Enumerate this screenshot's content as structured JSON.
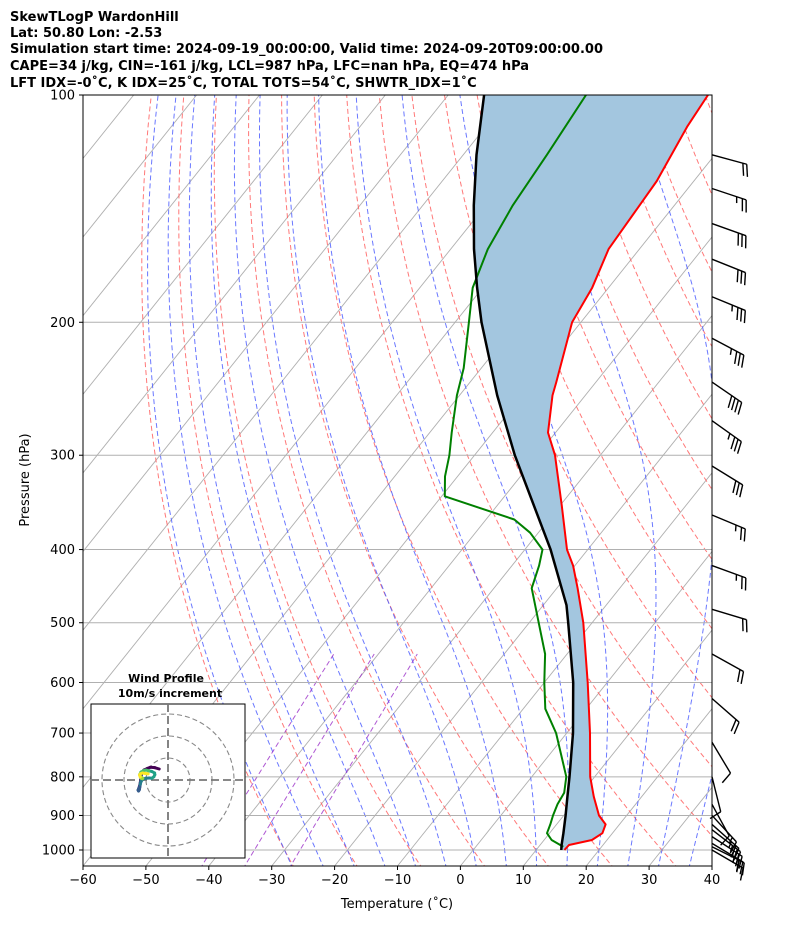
{
  "header": {
    "line1": "SkewTLogP WardonHill",
    "line2": "Lat: 50.80   Lon: -2.53",
    "line3": "Simulation start time: 2024-09-19_00:00:00, Valid time: 2024-09-20T09:00:00.00",
    "line4": "CAPE=34 j/kg, CIN=-161 j/kg, LCL=987 hPa, LFC=nan hPa, EQ=474 hPa",
    "line5": "LFT IDX=-0˚C, K IDX=25˚C, TOTAL TOTS=54˚C, SHWTR_IDX=1˚C"
  },
  "chart_data": [
    {
      "type": "line",
      "subtype": "skew-t log-p",
      "xlabel": "Temperature (˚C)",
      "ylabel": "Pressure (hPa)",
      "xlim": [
        -60,
        40
      ],
      "ylim": [
        1050,
        100
      ],
      "y_scale": "log",
      "x_ticks": [
        -60,
        -50,
        -40,
        -30,
        -20,
        -10,
        0,
        10,
        20,
        30,
        40
      ],
      "x_tick_labels": [
        "−60",
        "−50",
        "−40",
        "−30",
        "−20",
        "−10",
        "0",
        "10",
        "20",
        "30",
        "40"
      ],
      "y_ticks": [
        1000,
        900,
        800,
        700,
        600,
        500,
        400,
        300,
        200,
        100
      ],
      "y_tick_labels": [
        "1000",
        "900",
        "800",
        "700",
        "600",
        "500",
        "400",
        "300",
        "200",
        "100"
      ],
      "grid": true,
      "colors": {
        "temperature": "#ff0000",
        "dewpoint": "#008000",
        "parcel": "#000000",
        "shade": "#a3c6df",
        "isotherm": "#b0b0b0",
        "dry_adiabat": "#ff6060",
        "moist_adiabat": "#5060ff",
        "mixing_ratio": "#9b30c8"
      },
      "series": [
        {
          "role": "temperature",
          "points": [
            [
              1000,
              14.5
            ],
            [
              985,
              14.6
            ],
            [
              970,
              17.6
            ],
            [
              950,
              18.4
            ],
            [
              925,
              17.8
            ],
            [
              900,
              15.6
            ],
            [
              850,
              12.4
            ],
            [
              800,
              9.3
            ],
            [
              700,
              3.7
            ],
            [
              600,
              -3.1
            ],
            [
              500,
              -11.4
            ],
            [
              450,
              -16.7
            ],
            [
              420,
              -20.3
            ],
            [
              400,
              -23.3
            ],
            [
              350,
              -29.7
            ],
            [
              300,
              -37.2
            ],
            [
              280,
              -41.2
            ],
            [
              250,
              -45.2
            ],
            [
              240,
              -46.3
            ],
            [
              200,
              -51.4
            ],
            [
              180,
              -52.6
            ],
            [
              160,
              -54.9
            ],
            [
              130,
              -55.9
            ],
            [
              110,
              -58.0
            ],
            [
              100,
              -58.7
            ]
          ]
        },
        {
          "role": "dewpoint",
          "points": [
            [
              990,
              13.9
            ],
            [
              970,
              11.2
            ],
            [
              950,
              9.6
            ],
            [
              925,
              9.0
            ],
            [
              900,
              8.3
            ],
            [
              870,
              7.6
            ],
            [
              840,
              7.2
            ],
            [
              800,
              5.5
            ],
            [
              700,
              -1.7
            ],
            [
              650,
              -6.5
            ],
            [
              600,
              -10.0
            ],
            [
              550,
              -13.5
            ],
            [
              500,
              -18.5
            ],
            [
              450,
              -24.0
            ],
            [
              420,
              -25.7
            ],
            [
              400,
              -27.2
            ],
            [
              380,
              -31.3
            ],
            [
              365,
              -35.5
            ],
            [
              340,
              -49.5
            ],
            [
              320,
              -52.0
            ],
            [
              300,
              -54.0
            ],
            [
              280,
              -56.5
            ],
            [
              250,
              -60.4
            ],
            [
              230,
              -62.8
            ],
            [
              200,
              -67.8
            ],
            [
              180,
              -71.6
            ],
            [
              160,
              -74.1
            ],
            [
              140,
              -75.7
            ],
            [
              120,
              -76.7
            ],
            [
              100,
              -78.1
            ]
          ]
        },
        {
          "role": "parcel",
          "points": [
            [
              1000,
              14.0
            ],
            [
              987,
              13.5
            ],
            [
              950,
              12.2
            ],
            [
              900,
              10.3
            ],
            [
              850,
              8.2
            ],
            [
              800,
              6.0
            ],
            [
              700,
              1.0
            ],
            [
              600,
              -5.4
            ],
            [
              500,
              -13.8
            ],
            [
              474,
              -16.3
            ],
            [
              400,
              -25.9
            ],
            [
              300,
              -43.6
            ],
            [
              250,
              -54.0
            ],
            [
              200,
              -65.8
            ],
            [
              180,
              -70.9
            ],
            [
              160,
              -76.3
            ],
            [
              140,
              -81.9
            ],
            [
              120,
              -87.9
            ],
            [
              100,
              -94.3
            ]
          ]
        }
      ],
      "wind_barbs": [
        {
          "p": 1000,
          "u": -6.0,
          "v": 3.5
        },
        {
          "p": 990,
          "u": -8.0,
          "v": 4.0
        },
        {
          "p": 980,
          "u": -10.0,
          "v": 6.0
        },
        {
          "p": 960,
          "u": -11.5,
          "v": 7.5
        },
        {
          "p": 940,
          "u": -11.0,
          "v": 8.5
        },
        {
          "p": 925,
          "u": -9.0,
          "v": 8.0
        },
        {
          "p": 900,
          "u": -6.0,
          "v": 6.5
        },
        {
          "p": 870,
          "u": -3.0,
          "v": 5.5
        },
        {
          "p": 800,
          "u": -1.0,
          "v": 4.0
        },
        {
          "p": 720,
          "u": -3.0,
          "v": 5.0
        },
        {
          "p": 630,
          "u": -8.0,
          "v": 7.0
        },
        {
          "p": 550,
          "u": -9.0,
          "v": 5.0
        },
        {
          "p": 480,
          "u": -10.0,
          "v": 3.0
        },
        {
          "p": 420,
          "u": -11.0,
          "v": 4.0
        },
        {
          "p": 360,
          "u": -12.0,
          "v": 5.0
        },
        {
          "p": 310,
          "u": -13.0,
          "v": 8.0
        },
        {
          "p": 270,
          "u": -14.0,
          "v": 10.0
        },
        {
          "p": 240,
          "u": -16.0,
          "v": 11.0
        },
        {
          "p": 210,
          "u": -17.0,
          "v": 9.0
        },
        {
          "p": 185,
          "u": -17.0,
          "v": 7.0
        },
        {
          "p": 165,
          "u": -15.0,
          "v": 6.0
        },
        {
          "p": 148,
          "u": -14.0,
          "v": 5.0
        },
        {
          "p": 133,
          "u": -12.0,
          "v": 4.0
        },
        {
          "p": 120,
          "u": -11.0,
          "v": 3.0
        }
      ],
      "hodograph": {
        "title": "Wind Profile",
        "subtitle": "10m/s increment",
        "rings_ms": [
          10,
          20,
          30
        ],
        "trace_uv": [
          [
            -4.0,
            5.0
          ],
          [
            -6.0,
            5.6
          ],
          [
            -8.0,
            5.8
          ],
          [
            -9.5,
            5.2
          ],
          [
            -11.0,
            4.5
          ],
          [
            -11.8,
            3.2
          ],
          [
            -12.2,
            1.8
          ],
          [
            -12.4,
            0.2
          ],
          [
            -12.6,
            -1.2
          ],
          [
            -12.9,
            -2.6
          ],
          [
            -13.3,
            -3.8
          ],
          [
            -13.6,
            -4.6
          ],
          [
            -13.4,
            -5.0
          ],
          [
            -13.0,
            -4.4
          ],
          [
            -12.8,
            -3.2
          ],
          [
            -12.6,
            -2.0
          ],
          [
            -12.3,
            -0.8
          ],
          [
            -11.5,
            0.4
          ],
          [
            -10.0,
            0.8
          ],
          [
            -8.5,
            0.9
          ],
          [
            -7.3,
            0.8
          ],
          [
            -6.4,
            1.5
          ],
          [
            -6.0,
            2.4
          ],
          [
            -6.1,
            3.2
          ],
          [
            -7.4,
            3.9
          ],
          [
            -8.8,
            4.2
          ],
          [
            -10.0,
            4.5
          ],
          [
            -11.2,
            4.2
          ],
          [
            -12.3,
            3.6
          ],
          [
            -12.8,
            2.6
          ],
          [
            -12.5,
            1.6
          ],
          [
            -11.8,
            1.0
          ],
          [
            -11.5,
            0.8
          ],
          [
            -11.6,
            0.6
          ],
          [
            -12.2,
            0.8
          ],
          [
            -12.6,
            1.4
          ],
          [
            -12.9,
            2.2
          ],
          [
            -12.6,
            2.8
          ],
          [
            -11.6,
            3.2
          ],
          [
            -10.4,
            3.0
          ],
          [
            -9.0,
            2.8
          ]
        ]
      }
    }
  ]
}
